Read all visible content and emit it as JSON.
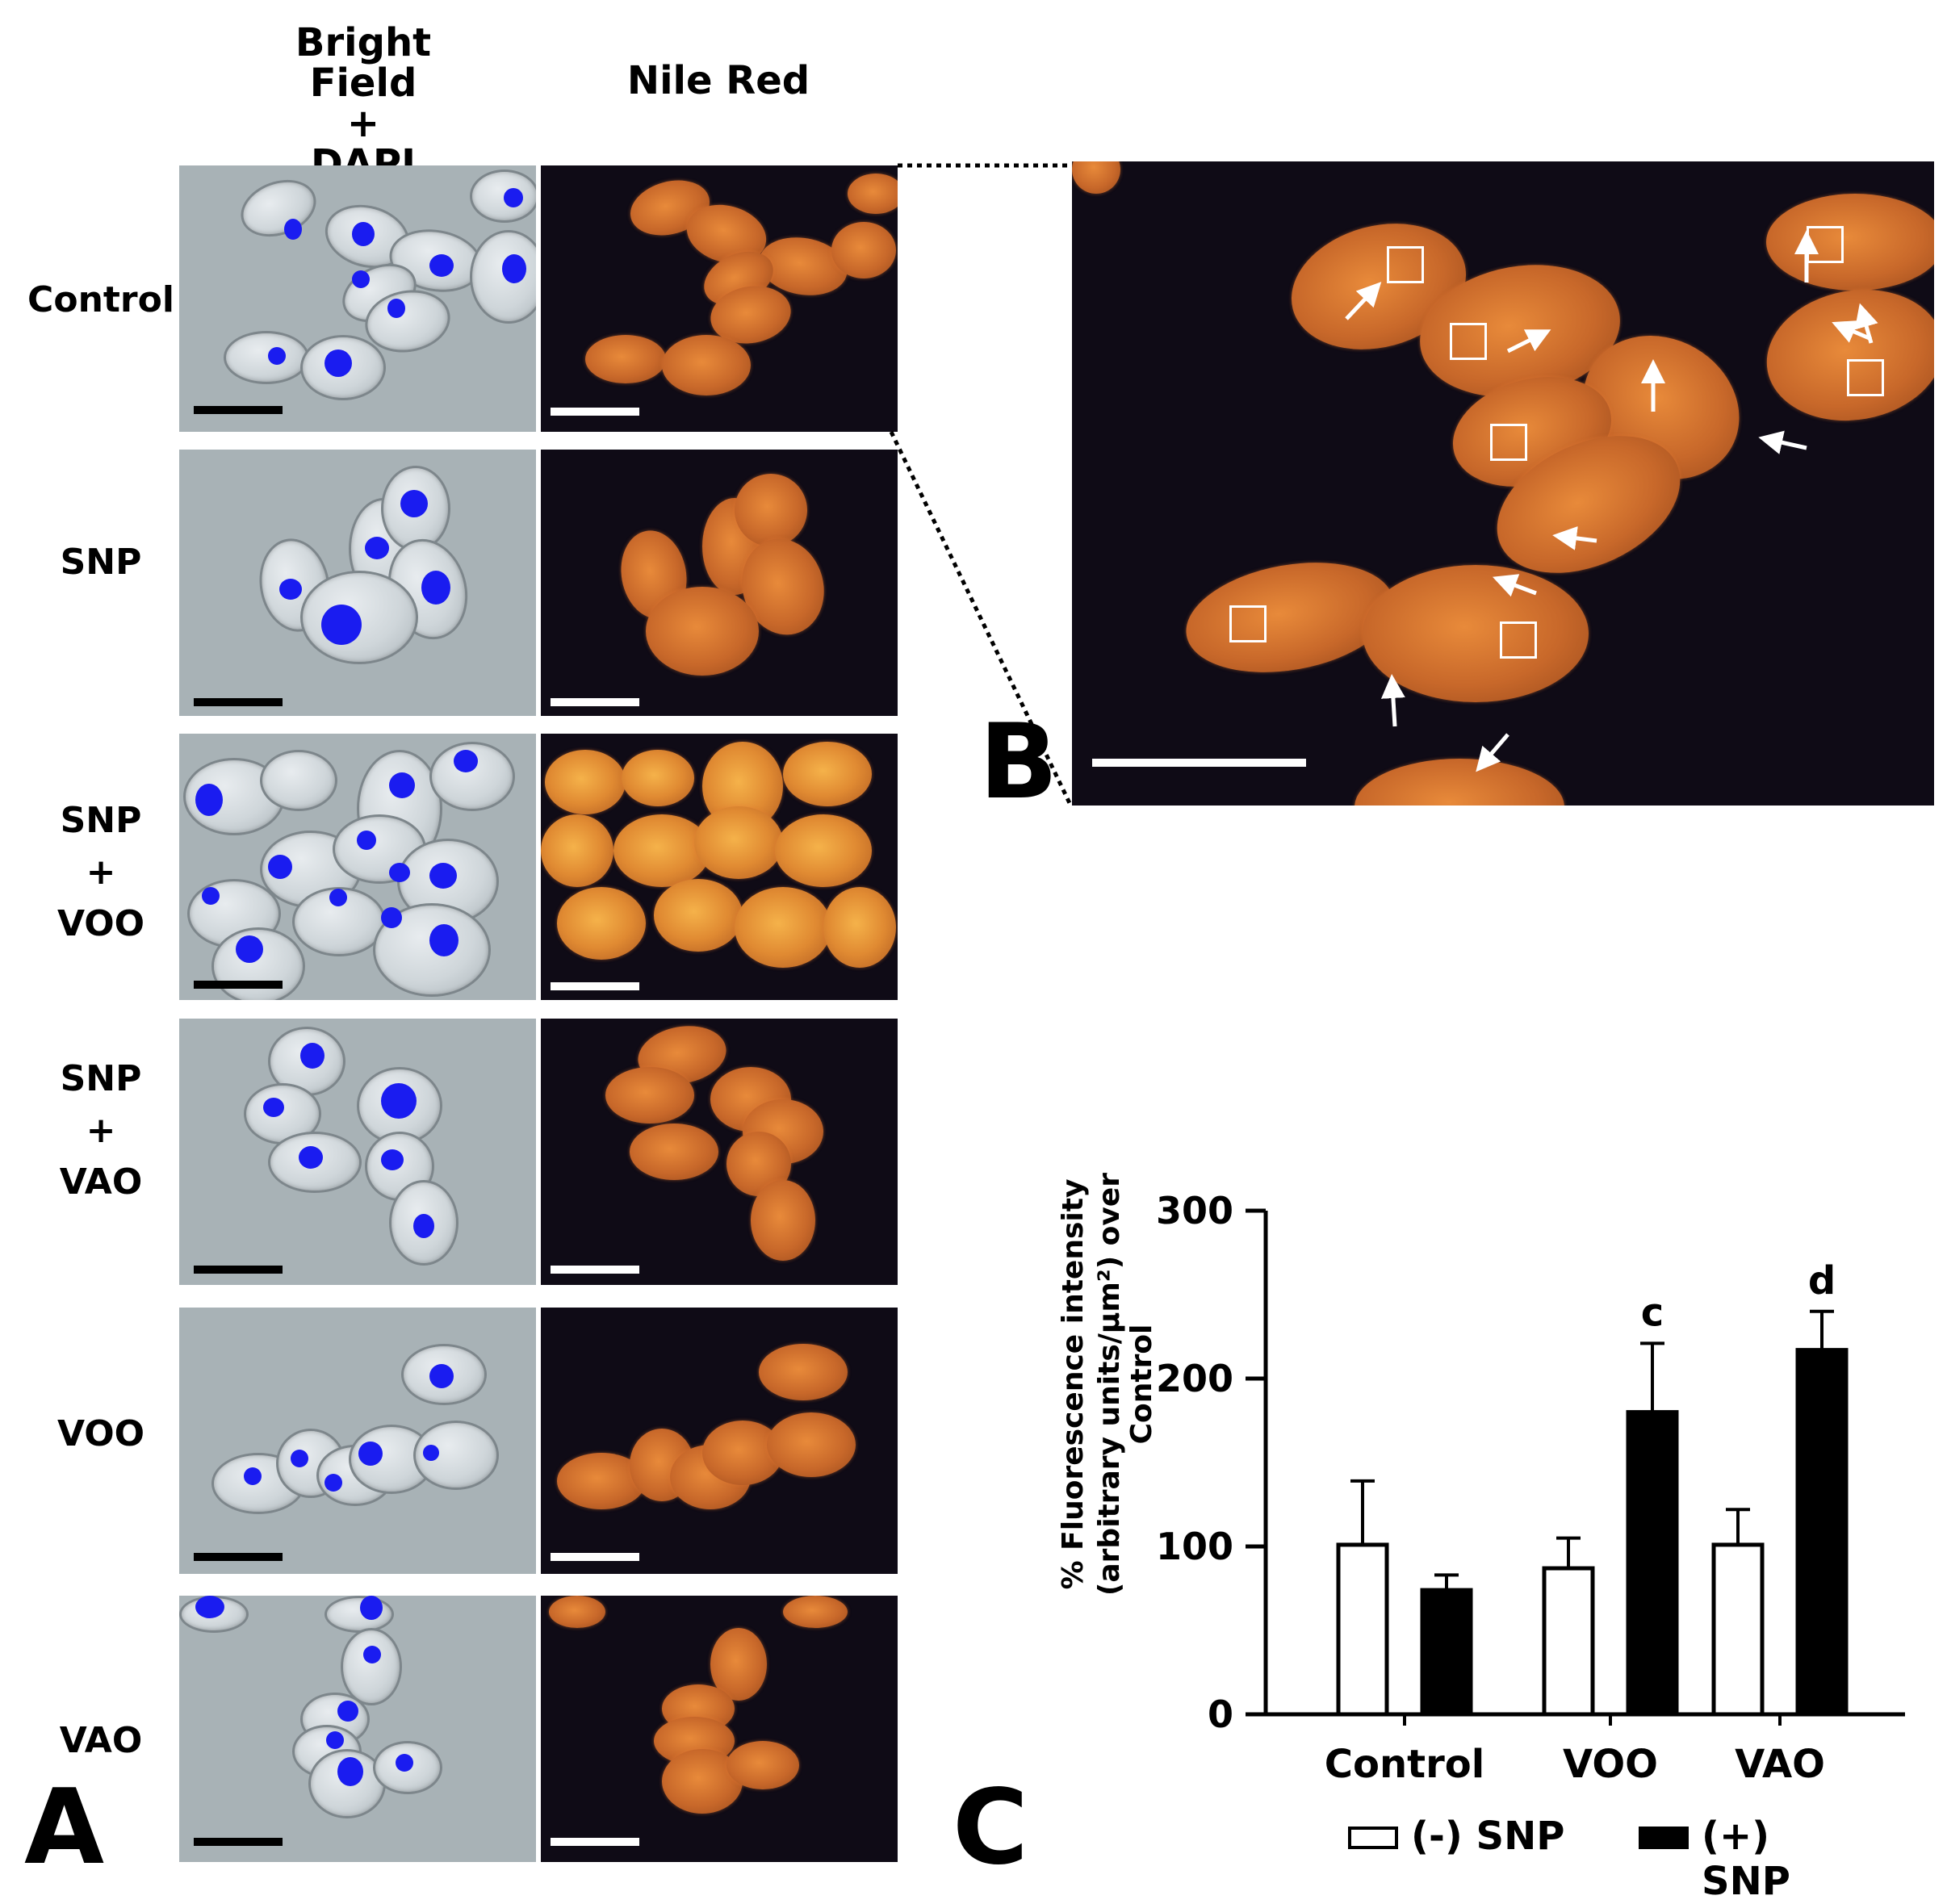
{
  "figure": {
    "panel_a": {
      "label": "A",
      "column_headers": [
        "Bright Field\n+\nDAPI",
        "Nile Red"
      ],
      "rows": [
        {
          "label": "Control"
        },
        {
          "label": "SNP"
        },
        {
          "label": "SNP\n+\nVOO"
        },
        {
          "label": "SNP\n+\nVAO"
        },
        {
          "label": "VOO"
        },
        {
          "label": "VAO"
        }
      ]
    },
    "panel_b": {
      "label": "B"
    },
    "panel_c": {
      "label": "C",
      "legend": [
        {
          "label": "(-) SNP",
          "color": "#ffffff"
        },
        {
          "label": "(+) SNP",
          "color": "#000000"
        }
      ]
    }
  },
  "chart_data": {
    "type": "bar",
    "categories": [
      "Control",
      "VOO",
      "VAO"
    ],
    "series": [
      {
        "name": "(-) SNP",
        "values": [
          101,
          87,
          101
        ],
        "errors": [
          38,
          18,
          21
        ],
        "color": "#ffffff"
      },
      {
        "name": "(+) SNP",
        "values": [
          74,
          180,
          217
        ],
        "errors": [
          9,
          41,
          23
        ],
        "color": "#000000"
      }
    ],
    "significance": [
      {
        "category": "VOO",
        "series": "(+) SNP",
        "label": "c"
      },
      {
        "category": "VAO",
        "series": "(+) SNP",
        "label": "d"
      }
    ],
    "ylabel_line1": "% Fluorescence intensity",
    "ylabel_line2": "(arbitrary units/µm²) over Control",
    "yticks": [
      "0",
      "100",
      "200",
      "300"
    ],
    "ylim": [
      0,
      300
    ],
    "legend_position": "bottom"
  }
}
